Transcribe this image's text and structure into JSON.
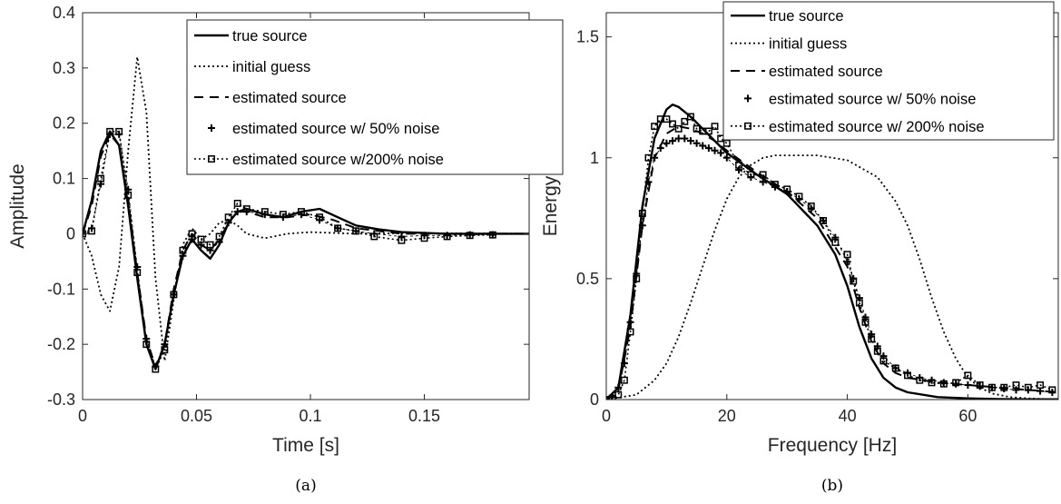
{
  "chart_data": [
    {
      "type": "line",
      "caption": "(a)",
      "xlabel": "Time [s]",
      "ylabel": "Amplitude",
      "xlim": [
        0,
        0.196
      ],
      "ylim": [
        -0.3,
        0.4
      ],
      "xticks": [
        "0",
        "0.05",
        "0.1",
        "0.15"
      ],
      "xtick_values": [
        0,
        0.05,
        0.1,
        0.15
      ],
      "yticks": [
        "-0.3",
        "-0.2",
        "-0.1",
        "0",
        "0.1",
        "0.2",
        "0.3",
        "0.4"
      ],
      "ytick_values": [
        -0.3,
        -0.2,
        -0.1,
        0,
        0.1,
        0.2,
        0.3,
        0.4
      ],
      "grid": false,
      "legend_position": "top-right",
      "series": [
        {
          "name": "true source",
          "style": "solid",
          "x": [
            0,
            0.004,
            0.008,
            0.012,
            0.016,
            0.02,
            0.024,
            0.028,
            0.032,
            0.036,
            0.04,
            0.044,
            0.048,
            0.052,
            0.056,
            0.06,
            0.064,
            0.068,
            0.072,
            0.08,
            0.088,
            0.096,
            0.104,
            0.112,
            0.12,
            0.13,
            0.14,
            0.16,
            0.196
          ],
          "y": [
            0,
            0.06,
            0.15,
            0.185,
            0.16,
            0.05,
            -0.08,
            -0.2,
            -0.245,
            -0.2,
            -0.11,
            -0.04,
            -0.01,
            -0.03,
            -0.045,
            -0.02,
            0.02,
            0.04,
            0.045,
            0.035,
            0.03,
            0.04,
            0.045,
            0.03,
            0.015,
            0.008,
            0.003,
            0,
            0
          ]
        },
        {
          "name": "initial guess",
          "style": "dotted",
          "x": [
            0,
            0.004,
            0.008,
            0.012,
            0.016,
            0.02,
            0.024,
            0.028,
            0.032,
            0.036,
            0.04,
            0.044,
            0.048,
            0.052,
            0.056,
            0.06,
            0.064,
            0.068,
            0.072,
            0.08,
            0.09,
            0.1,
            0.12,
            0.14,
            0.196
          ],
          "y": [
            0,
            -0.04,
            -0.11,
            -0.14,
            -0.06,
            0.15,
            0.32,
            0.22,
            -0.08,
            -0.23,
            -0.12,
            -0.02,
            0.01,
            -0.01,
            0.0,
            0.02,
            0.025,
            0.015,
            0.0,
            -0.008,
            0.0,
            0.003,
            0.0,
            0.001,
            0
          ]
        },
        {
          "name": "estimated source",
          "style": "dashed",
          "x": [
            0,
            0.004,
            0.008,
            0.012,
            0.016,
            0.02,
            0.024,
            0.028,
            0.032,
            0.036,
            0.04,
            0.044,
            0.048,
            0.052,
            0.056,
            0.06,
            0.064,
            0.068,
            0.072,
            0.08,
            0.09,
            0.1,
            0.11,
            0.12,
            0.14,
            0.16,
            0.196
          ],
          "y": [
            0,
            0.05,
            0.14,
            0.18,
            0.16,
            0.06,
            -0.07,
            -0.19,
            -0.24,
            -0.2,
            -0.1,
            -0.03,
            0.0,
            -0.02,
            -0.03,
            -0.01,
            0.02,
            0.04,
            0.04,
            0.03,
            0.03,
            0.035,
            0.025,
            0.01,
            0.0,
            0.0,
            0
          ]
        },
        {
          "name": "estimated source w/ 50% noise",
          "style": "markers-plus",
          "x": [
            0,
            0.004,
            0.008,
            0.012,
            0.016,
            0.02,
            0.024,
            0.028,
            0.032,
            0.036,
            0.04,
            0.044,
            0.048,
            0.052,
            0.056,
            0.06,
            0.064,
            0.068,
            0.072,
            0.08,
            0.088,
            0.096,
            0.104,
            0.112,
            0.12,
            0.128,
            0.14,
            0.15,
            0.16,
            0.17,
            0.18
          ],
          "y": [
            0,
            0.01,
            0.09,
            0.18,
            0.18,
            0.08,
            -0.06,
            -0.19,
            -0.24,
            -0.2,
            -0.11,
            -0.04,
            -0.01,
            -0.02,
            -0.03,
            -0.015,
            0.02,
            0.04,
            0.04,
            0.035,
            0.03,
            0.035,
            0.025,
            0.01,
            0.005,
            0.0,
            -0.005,
            -0.003,
            -0.003,
            -0.002,
            -0.002
          ]
        },
        {
          "name": "estimated source w/200% noise",
          "style": "dotted-squares",
          "x": [
            0,
            0.004,
            0.008,
            0.012,
            0.016,
            0.02,
            0.024,
            0.028,
            0.032,
            0.036,
            0.04,
            0.044,
            0.048,
            0.052,
            0.056,
            0.06,
            0.064,
            0.068,
            0.072,
            0.08,
            0.088,
            0.096,
            0.104,
            0.112,
            0.12,
            0.128,
            0.14,
            0.15,
            0.16,
            0.17,
            0.18
          ],
          "y": [
            0,
            0.005,
            0.1,
            0.185,
            0.185,
            0.07,
            -0.07,
            -0.2,
            -0.245,
            -0.21,
            -0.11,
            -0.03,
            0.0,
            -0.01,
            -0.02,
            -0.005,
            0.03,
            0.055,
            0.045,
            0.04,
            0.035,
            0.04,
            0.03,
            0.01,
            0.005,
            -0.005,
            -0.012,
            -0.008,
            -0.005,
            -0.003,
            -0.002
          ]
        }
      ]
    },
    {
      "type": "line",
      "caption": "(b)",
      "xlabel": "Frequency [Hz]",
      "ylabel": "Energy",
      "xlim": [
        0,
        75
      ],
      "ylim": [
        0,
        1.6
      ],
      "xticks": [
        "0",
        "20",
        "40",
        "60"
      ],
      "xtick_values": [
        0,
        20,
        40,
        60
      ],
      "yticks": [
        "0",
        "0.5",
        "1",
        "1.5"
      ],
      "ytick_values": [
        0,
        0.5,
        1,
        1.5
      ],
      "grid": false,
      "legend_position": "top-right",
      "series": [
        {
          "name": "true source",
          "style": "solid",
          "x": [
            0,
            2,
            4,
            6,
            8,
            10,
            11,
            12,
            14,
            16,
            18,
            20,
            25,
            30,
            35,
            38,
            40,
            42,
            44,
            46,
            48,
            50,
            55,
            60,
            65,
            70,
            75
          ],
          "y": [
            0,
            0.05,
            0.35,
            0.8,
            1.08,
            1.2,
            1.22,
            1.21,
            1.17,
            1.12,
            1.07,
            1.02,
            0.93,
            0.85,
            0.72,
            0.6,
            0.47,
            0.3,
            0.17,
            0.09,
            0.05,
            0.03,
            0.01,
            0.005,
            0.002,
            0.001,
            0.001
          ]
        },
        {
          "name": "initial guess",
          "style": "dotted",
          "x": [
            0,
            5,
            8,
            10,
            12,
            14,
            16,
            18,
            20,
            22,
            24,
            26,
            28,
            30,
            35,
            40,
            45,
            48,
            50,
            52,
            54,
            56,
            58,
            60,
            62,
            64,
            67,
            70,
            75
          ],
          "y": [
            0,
            0.02,
            0.08,
            0.15,
            0.26,
            0.4,
            0.55,
            0.7,
            0.83,
            0.92,
            0.97,
            1.0,
            1.01,
            1.01,
            1.01,
            0.99,
            0.92,
            0.82,
            0.72,
            0.58,
            0.42,
            0.28,
            0.17,
            0.09,
            0.05,
            0.025,
            0.01,
            0.005,
            0.0
          ]
        },
        {
          "name": "estimated source",
          "style": "dashed",
          "x": [
            0,
            2,
            4,
            6,
            8,
            10,
            12,
            14,
            16,
            18,
            20,
            25,
            30,
            35,
            40,
            42,
            44,
            46,
            48,
            50,
            55,
            60,
            65,
            70,
            75
          ],
          "y": [
            0,
            0.04,
            0.3,
            0.72,
            1.0,
            1.1,
            1.13,
            1.12,
            1.1,
            1.07,
            1.03,
            0.94,
            0.86,
            0.75,
            0.55,
            0.38,
            0.24,
            0.15,
            0.11,
            0.09,
            0.07,
            0.06,
            0.05,
            0.04,
            0.03
          ]
        },
        {
          "name": "estimated source w/ 50% noise",
          "style": "markers-plus",
          "x": [
            0,
            1,
            2,
            3,
            4,
            5,
            6,
            7,
            8,
            9,
            10,
            11,
            12,
            13,
            14,
            15,
            16,
            17,
            18,
            19,
            20,
            22,
            24,
            26,
            28,
            30,
            32,
            34,
            36,
            38,
            40,
            41,
            42,
            43,
            44,
            45,
            46,
            48,
            50,
            52,
            54,
            56,
            58,
            60,
            62,
            64,
            66,
            68,
            70,
            72,
            74
          ],
          "y": [
            0,
            0.01,
            0.05,
            0.15,
            0.32,
            0.52,
            0.72,
            0.9,
            1.0,
            1.04,
            1.06,
            1.07,
            1.08,
            1.08,
            1.07,
            1.06,
            1.05,
            1.04,
            1.03,
            1.02,
            1.0,
            0.95,
            0.92,
            0.9,
            0.88,
            0.86,
            0.83,
            0.79,
            0.74,
            0.67,
            0.57,
            0.5,
            0.42,
            0.34,
            0.27,
            0.22,
            0.18,
            0.13,
            0.11,
            0.09,
            0.08,
            0.07,
            0.065,
            0.06,
            0.055,
            0.05,
            0.045,
            0.04,
            0.04,
            0.035,
            0.03
          ]
        },
        {
          "name": "estimated source w/ 200% noise",
          "style": "dotted-squares",
          "x": [
            0,
            1,
            2,
            3,
            4,
            5,
            6,
            7,
            8,
            9,
            10,
            11,
            12,
            13,
            14,
            15,
            16,
            17,
            18,
            19,
            20,
            22,
            24,
            26,
            28,
            30,
            32,
            34,
            36,
            38,
            40,
            41,
            42,
            43,
            44,
            45,
            46,
            48,
            50,
            52,
            54,
            56,
            58,
            60,
            62,
            64,
            66,
            68,
            70,
            72,
            74
          ],
          "y": [
            0,
            0.005,
            0.02,
            0.08,
            0.28,
            0.5,
            0.77,
            1.0,
            1.13,
            1.16,
            1.16,
            1.14,
            1.12,
            1.15,
            1.17,
            1.12,
            1.11,
            1.11,
            1.13,
            1.08,
            1.06,
            0.97,
            0.93,
            0.93,
            0.89,
            0.87,
            0.84,
            0.8,
            0.74,
            0.65,
            0.6,
            0.49,
            0.4,
            0.32,
            0.25,
            0.2,
            0.16,
            0.13,
            0.1,
            0.08,
            0.07,
            0.065,
            0.07,
            0.1,
            0.06,
            0.05,
            0.05,
            0.06,
            0.05,
            0.06,
            0.04
          ]
        }
      ]
    }
  ]
}
